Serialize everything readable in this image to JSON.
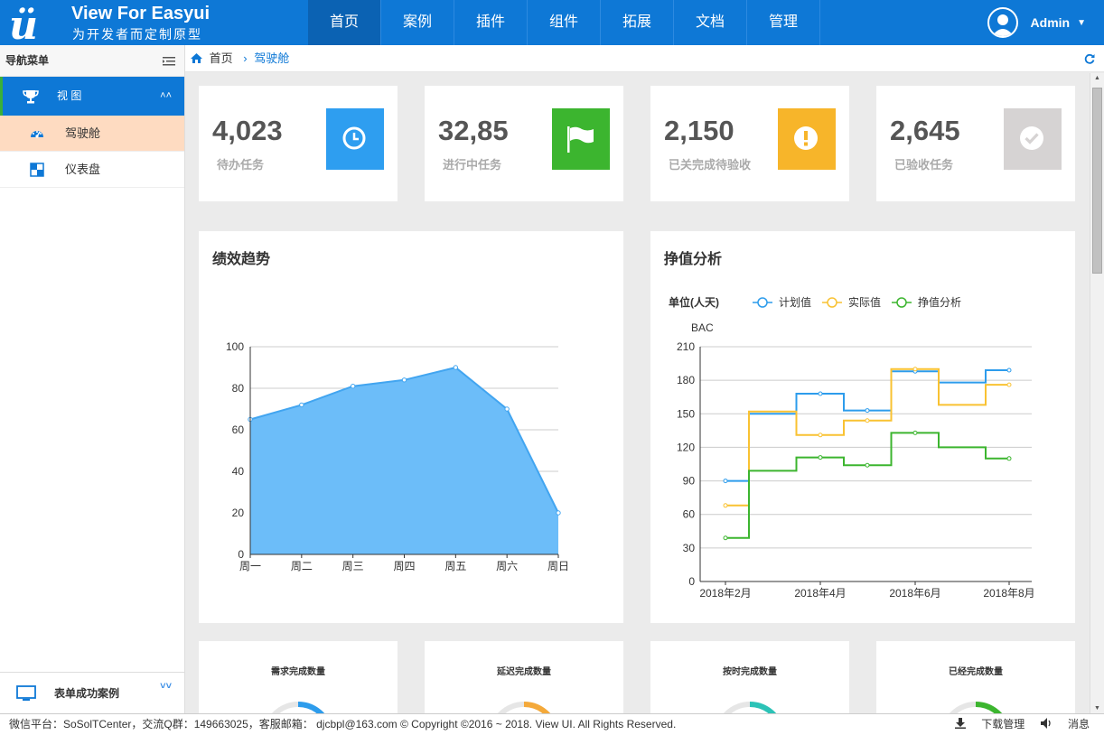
{
  "brand": {
    "title": "View For Easyui",
    "subtitle": "为开发者而定制原型"
  },
  "topnav": [
    {
      "label": "首页",
      "active": true
    },
    {
      "label": "案例"
    },
    {
      "label": "插件"
    },
    {
      "label": "组件"
    },
    {
      "label": "拓展"
    },
    {
      "label": "文档"
    },
    {
      "label": "管理"
    }
  ],
  "user": {
    "name": "Admin"
  },
  "sidebar": {
    "title": "导航菜单",
    "group": "视 图",
    "items": [
      {
        "label": "驾驶舱",
        "icon": "dashboard-icon",
        "active": true
      },
      {
        "label": "仪表盘",
        "icon": "grid-icon"
      }
    ],
    "bottom": "表单成功案例"
  },
  "breadcrumb": {
    "home": "首页",
    "current": "驾驶舱"
  },
  "stats": [
    {
      "value": "4,023",
      "label": "待办任务",
      "color": "#2e9ef0",
      "icon": "clock-icon"
    },
    {
      "value": "32,85",
      "label": "进行中任务",
      "color": "#3cb52f",
      "icon": "flag-icon"
    },
    {
      "value": "2,150",
      "label": "已关完成待验收",
      "color": "#f7b52a",
      "icon": "alert-icon"
    },
    {
      "value": "2,645",
      "label": "已验收任务",
      "color": "#d6d3d3",
      "icon": "check-icon"
    }
  ],
  "panels": {
    "trend": "绩效趋势",
    "ev": "挣值分析"
  },
  "chart_data": [
    {
      "type": "area",
      "categories": [
        "周一",
        "周二",
        "周三",
        "周四",
        "周五",
        "周六",
        "周日"
      ],
      "values": [
        65,
        72,
        81,
        84,
        90,
        70,
        20
      ],
      "ylim": [
        0,
        100
      ],
      "yticks": [
        0,
        20,
        40,
        60,
        80,
        100
      ],
      "color": "#6cbdf9",
      "grid": true
    },
    {
      "type": "line",
      "step": true,
      "ylabel": "BAC",
      "unit": "单位(人天)",
      "x_ticks": [
        "2018年2月",
        "2018年4月",
        "2018年6月",
        "2018年8月"
      ],
      "ylim": [
        0,
        210
      ],
      "yticks": [
        0,
        30,
        60,
        90,
        120,
        150,
        180,
        210
      ],
      "legend": "top-left",
      "series": [
        {
          "name": "计划值",
          "color": "#2d9cec",
          "values": [
            90,
            150,
            168,
            153,
            188,
            178,
            189
          ]
        },
        {
          "name": "实际值",
          "color": "#f9c232",
          "values": [
            68,
            152,
            131,
            144,
            190,
            158,
            176
          ]
        },
        {
          "name": "挣值分析",
          "color": "#3cb52f",
          "values": [
            39,
            99,
            111,
            104,
            133,
            120,
            110
          ]
        }
      ]
    }
  ],
  "gauges": [
    {
      "title": "需求完成数量",
      "color": "#2d9cec"
    },
    {
      "title": "延迟完成数量",
      "color": "#f4a93a"
    },
    {
      "title": "按时完成数量",
      "color": "#2cc3b7"
    },
    {
      "title": "已经完成数量",
      "color": "#3cb52f"
    }
  ],
  "footer": {
    "text": "微信平台：SoSolTCenter，交流Q群：149663025，客服邮箱：  djcbpl@163.com  © Copyright ©2016 ~ 2018. View UI. All Rights Reserved.",
    "download": "下载管理",
    "message": "消息"
  }
}
